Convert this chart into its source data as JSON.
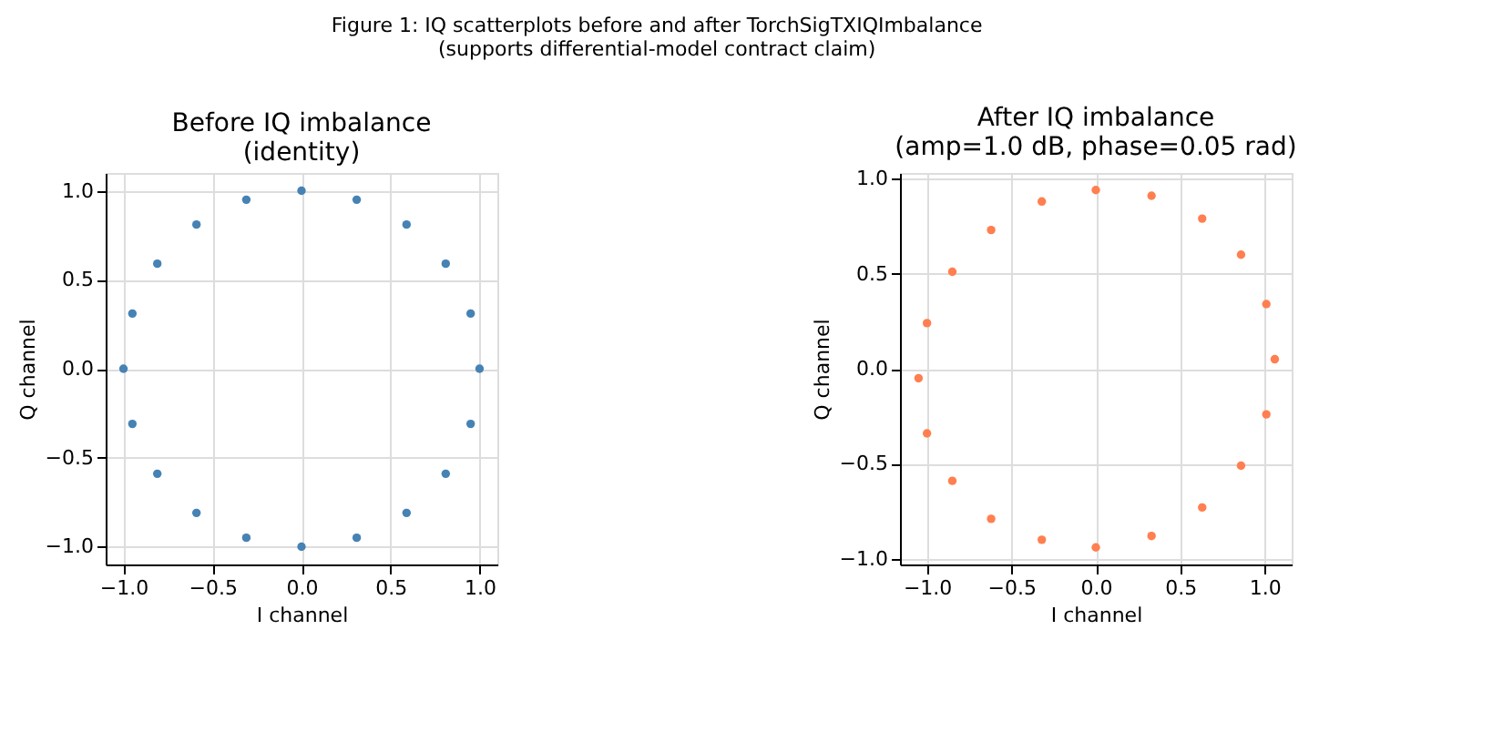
{
  "chart_data": [
    {
      "type": "scatter",
      "title": "Before IQ imbalance\n(identity)",
      "annotations": [
        "Figure 1: IQ scatterplots before and after TorchSigTXIQImbalance\n(supports differential-model contract claim)"
      ],
      "xlabel": "I channel",
      "ylabel": "Q channel",
      "marker": "circle",
      "grid": true,
      "xlim": [
        -1.1,
        1.1
      ],
      "ylim": [
        -1.1,
        1.1
      ],
      "xticks": [
        {
          "value": -1.0,
          "label": "−1.0"
        },
        {
          "value": -0.5,
          "label": "−0.5"
        },
        {
          "value": 0.0,
          "label": "0.0"
        },
        {
          "value": 0.5,
          "label": "0.5"
        },
        {
          "value": 1.0,
          "label": "1.0"
        }
      ],
      "yticks": [
        {
          "value": -1.0,
          "label": "−1.0"
        },
        {
          "value": -0.5,
          "label": "−0.5"
        },
        {
          "value": 0.0,
          "label": "0.0"
        },
        {
          "value": 0.5,
          "label": "0.5"
        },
        {
          "value": 1.0,
          "label": "1.0"
        }
      ],
      "series": [
        {
          "color": "#4682b4",
          "x": [
            1.0,
            0.95,
            0.81,
            0.59,
            0.31,
            0.0,
            -0.31,
            -0.59,
            -0.81,
            -0.95,
            -1.0,
            -0.95,
            -0.81,
            -0.59,
            -0.31,
            0.0,
            0.31,
            0.59,
            0.81,
            0.95
          ],
          "values": [
            0.0,
            0.31,
            0.59,
            0.81,
            0.95,
            1.0,
            0.95,
            0.81,
            0.59,
            0.31,
            0.0,
            -0.31,
            -0.59,
            -0.81,
            -0.95,
            -1.0,
            -0.95,
            -0.81,
            -0.59,
            -0.31
          ]
        }
      ]
    },
    {
      "type": "scatter",
      "title": "After IQ imbalance\n(amp=1.0 dB, phase=0.05 rad)",
      "xlabel": "I channel",
      "ylabel": "Q channel",
      "marker": "circle",
      "grid": true,
      "xlim": [
        -1.16,
        1.16
      ],
      "ylim": [
        -1.03,
        1.03
      ],
      "xticks": [
        {
          "value": -1.0,
          "label": "−1.0"
        },
        {
          "value": -0.5,
          "label": "−0.5"
        },
        {
          "value": 0.0,
          "label": "0.0"
        },
        {
          "value": 0.5,
          "label": "0.5"
        },
        {
          "value": 1.0,
          "label": "1.0"
        }
      ],
      "yticks": [
        {
          "value": -1.0,
          "label": "−1.0"
        },
        {
          "value": -0.5,
          "label": "−0.5"
        },
        {
          "value": 0.0,
          "label": "0.0"
        },
        {
          "value": 0.5,
          "label": "0.5"
        },
        {
          "value": 1.0,
          "label": "1.0"
        }
      ],
      "series": [
        {
          "color": "#ff7f50",
          "x": [
            1.06,
            1.01,
            0.86,
            0.63,
            0.33,
            0.0,
            -0.32,
            -0.62,
            -0.85,
            -1.0,
            -1.05,
            -1.0,
            -0.85,
            -0.62,
            -0.32,
            0.0,
            0.33,
            0.63,
            0.86,
            1.01
          ],
          "values": [
            0.05,
            0.34,
            0.6,
            0.79,
            0.91,
            0.94,
            0.88,
            0.73,
            0.51,
            0.24,
            -0.05,
            -0.34,
            -0.59,
            -0.79,
            -0.9,
            -0.94,
            -0.88,
            -0.73,
            -0.51,
            -0.24
          ]
        }
      ]
    }
  ]
}
